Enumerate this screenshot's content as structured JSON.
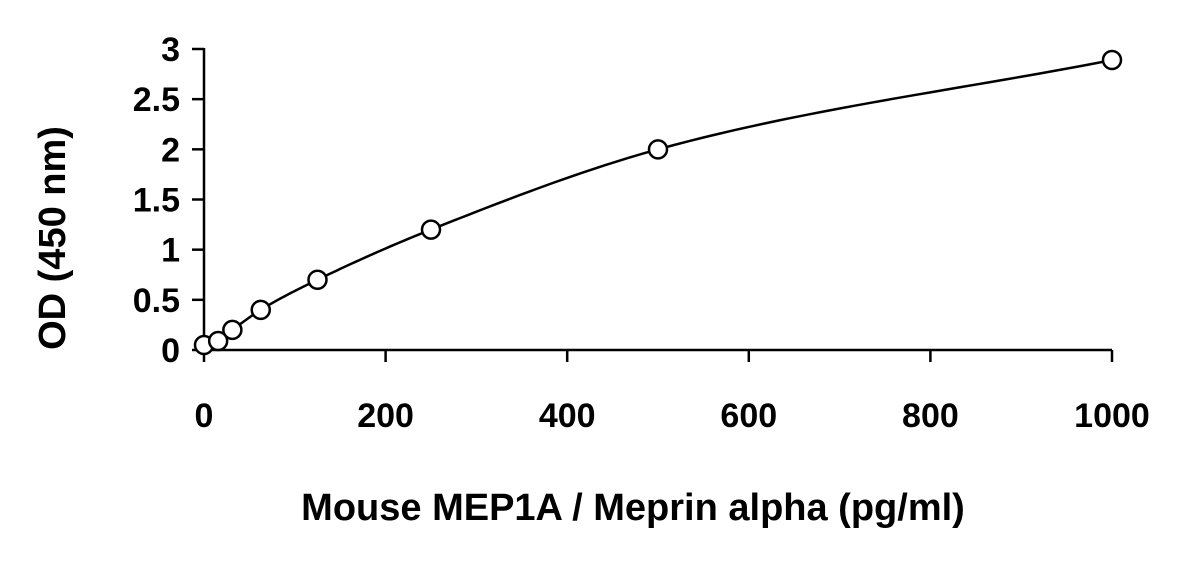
{
  "chart_data": {
    "type": "scatter",
    "title": "",
    "xlabel": "Mouse MEP1A / Meprin alpha (pg/ml)",
    "ylabel": "OD (450 nm)",
    "xlim": [
      0,
      1000
    ],
    "ylim": [
      0,
      3
    ],
    "x_ticks": [
      0,
      200,
      400,
      600,
      800,
      1000
    ],
    "y_ticks": [
      0,
      0.5,
      1,
      1.5,
      2,
      2.5,
      3
    ],
    "x_tick_labels": [
      "0",
      "200",
      "400",
      "600",
      "800",
      "1000"
    ],
    "y_tick_labels": [
      "0",
      "0.5",
      "1",
      "1.5",
      "2",
      "2.5",
      "3"
    ],
    "grid": false,
    "legend": false,
    "marker": "open-circle",
    "fit_line": "smooth curve",
    "series": [
      {
        "x": [
          0,
          15.6,
          31.25,
          62.5,
          125,
          250,
          500,
          1000
        ],
        "y": [
          0.05,
          0.09,
          0.2,
          0.4,
          0.7,
          1.2,
          2.0,
          2.89
        ]
      }
    ]
  }
}
